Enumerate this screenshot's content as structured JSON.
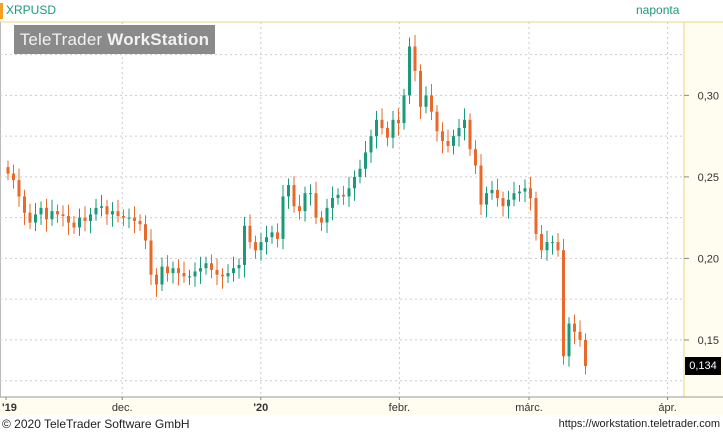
{
  "header": {
    "symbol": "XRPUSD",
    "period": "naponta",
    "watermark_regular": "TeleTrader ",
    "watermark_bold": "WorkStation"
  },
  "footer": {
    "copyright": "© 2020 TeleTrader Software GmbH",
    "url": "https://workstation.teletrader.com"
  },
  "colors": {
    "up": "#1a9a7a",
    "down": "#e8692a",
    "grid": "#cccccc",
    "axis_bg": "#fffdf0",
    "axis_border": "#e8d58a"
  },
  "chart_data": {
    "type": "candlestick",
    "x_start": "2019-11-05",
    "x_end": "2020-04-04",
    "ylim": [
      0.115,
      0.345
    ],
    "y_ticks": [
      {
        "value": 0.3,
        "label": "0,30"
      },
      {
        "value": 0.25,
        "label": "0,25"
      },
      {
        "value": 0.2,
        "label": "0,20"
      },
      {
        "value": 0.15,
        "label": "0,15"
      }
    ],
    "x_ticks": [
      {
        "date": "2019-11-05",
        "label": "'19"
      },
      {
        "date": "2019-12-01",
        "label": "dec."
      },
      {
        "date": "2020-01-01",
        "label": "'20"
      },
      {
        "date": "2020-02-01",
        "label": "febr."
      },
      {
        "date": "2020-03-01",
        "label": "márc."
      },
      {
        "date": "2020-04-01",
        "label": "ápr."
      }
    ],
    "last_price": {
      "value": 0.134,
      "label": "0,134"
    },
    "closes": [
      0.252,
      0.248,
      0.238,
      0.228,
      0.222,
      0.227,
      0.231,
      0.224,
      0.229,
      0.227,
      0.226,
      0.222,
      0.219,
      0.225,
      0.223,
      0.227,
      0.231,
      0.232,
      0.227,
      0.229,
      0.226,
      0.225,
      0.225,
      0.223,
      0.221,
      0.211,
      0.19,
      0.184,
      0.195,
      0.191,
      0.194,
      0.191,
      0.189,
      0.189,
      0.192,
      0.194,
      0.197,
      0.193,
      0.19,
      0.189,
      0.191,
      0.194,
      0.196,
      0.22,
      0.21,
      0.205,
      0.21,
      0.213,
      0.216,
      0.212,
      0.238,
      0.245,
      0.232,
      0.229,
      0.24,
      0.24,
      0.225,
      0.222,
      0.231,
      0.237,
      0.239,
      0.238,
      0.243,
      0.25,
      0.255,
      0.265,
      0.275,
      0.285,
      0.28,
      0.274,
      0.285,
      0.283,
      0.3,
      0.33,
      0.315,
      0.293,
      0.3,
      0.29,
      0.278,
      0.272,
      0.269,
      0.275,
      0.28,
      0.285,
      0.267,
      0.257,
      0.233,
      0.24,
      0.242,
      0.237,
      0.232,
      0.236,
      0.24,
      0.241,
      0.243,
      0.237,
      0.215,
      0.205,
      0.21,
      0.21,
      0.205,
      0.14,
      0.16,
      0.155,
      0.15,
      0.134
    ]
  }
}
